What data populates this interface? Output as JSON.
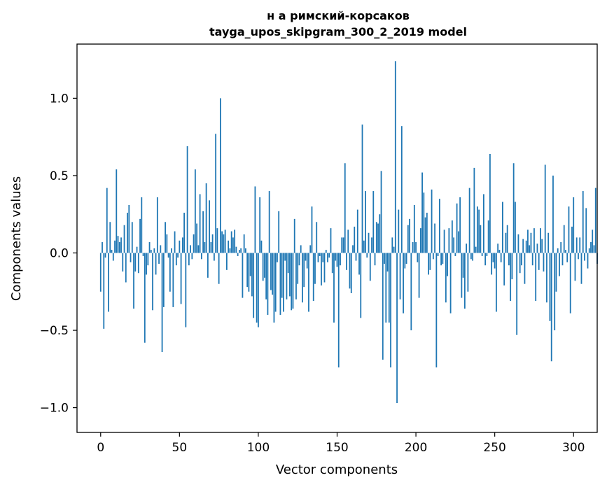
{
  "chart_data": {
    "type": "bar",
    "title_line1": "н а римский-корсаков",
    "title_line2": "tayga_upos_skipgram_300_2_2019 model",
    "xlabel": "Vector components",
    "ylabel": "Components values",
    "xlim": [
      -15,
      315
    ],
    "ylim": [
      -1.16,
      1.35
    ],
    "xticks": [
      0,
      50,
      100,
      150,
      200,
      250,
      300
    ],
    "yticks": [
      -1.0,
      -0.5,
      0.0,
      0.5,
      1.0
    ],
    "ytick_labels": [
      "−1.0",
      "−0.5",
      "0.0",
      "0.5",
      "1.0"
    ],
    "bar_color": "#1f77b4",
    "grid": false,
    "values": [
      -0.25,
      0.07,
      -0.49,
      -0.03,
      0.42,
      -0.38,
      0.2,
      0.02,
      -0.05,
      0.08,
      0.54,
      0.11,
      0.07,
      0.1,
      -0.12,
      0.18,
      -0.19,
      0.26,
      0.31,
      -0.06,
      0.2,
      -0.36,
      -0.12,
      0.04,
      -0.13,
      0.22,
      0.36,
      -0.02,
      -0.58,
      -0.14,
      -0.08,
      0.07,
      0.02,
      -0.37,
      0.03,
      -0.14,
      0.36,
      -0.07,
      0.05,
      -0.64,
      -0.35,
      0.2,
      0.12,
      -0.03,
      -0.25,
      0.03,
      -0.35,
      0.14,
      -0.08,
      -0.03,
      0.08,
      -0.33,
      0.1,
      0.26,
      -0.48,
      0.69,
      -0.08,
      0.05,
      -0.04,
      0.12,
      0.54,
      0.19,
      0.05,
      0.38,
      -0.04,
      0.27,
      0.07,
      0.45,
      -0.16,
      0.34,
      0.07,
      0.12,
      -0.05,
      0.77,
      0.16,
      -0.2,
      1.0,
      0.14,
      0.12,
      0.15,
      -0.11,
      0.08,
      0.03,
      0.14,
      0.1,
      0.15,
      0.04,
      -0.02,
      0.02,
      0.03,
      -0.29,
      0.12,
      0.03,
      -0.22,
      -0.25,
      -0.15,
      -0.28,
      -0.42,
      0.43,
      -0.45,
      -0.48,
      0.36,
      0.08,
      -0.18,
      -0.16,
      -0.3,
      -0.4,
      0.4,
      -0.24,
      -0.27,
      -0.45,
      -0.38,
      -0.06,
      0.27,
      -0.4,
      -0.29,
      -0.38,
      -0.05,
      -0.3,
      -0.13,
      -0.28,
      -0.37,
      -0.36,
      0.22,
      -0.3,
      -0.2,
      -0.08,
      0.05,
      -0.32,
      -0.22,
      -0.05,
      -0.1,
      -0.38,
      0.05,
      0.3,
      -0.31,
      -0.2,
      0.2,
      -0.06,
      -0.02,
      -0.21,
      -0.06,
      -0.19,
      0.02,
      -0.06,
      -0.03,
      0.16,
      -0.13,
      -0.45,
      -0.05,
      -0.09,
      -0.74,
      -0.08,
      0.1,
      0.1,
      0.58,
      -0.11,
      0.15,
      -0.23,
      -0.26,
      0.05,
      0.17,
      -0.05,
      0.28,
      -0.14,
      -0.42,
      0.83,
      0.08,
      0.4,
      -0.03,
      0.13,
      -0.18,
      0.1,
      0.4,
      -0.08,
      0.2,
      0.19,
      0.25,
      0.53,
      -0.69,
      -0.07,
      -0.45,
      -0.12,
      -0.45,
      -0.74,
      0.1,
      0.04,
      1.24,
      -0.97,
      0.28,
      -0.3,
      0.82,
      -0.39,
      -0.1,
      -0.07,
      0.18,
      0.22,
      -0.5,
      0.07,
      0.31,
      0.07,
      -0.06,
      -0.29,
      0.16,
      0.52,
      0.39,
      0.23,
      0.26,
      -0.14,
      -0.11,
      0.41,
      -0.04,
      0.19,
      -0.74,
      -0.02,
      0.35,
      -0.08,
      -0.07,
      0.15,
      -0.32,
      -0.15,
      0.16,
      -0.39,
      0.21,
      0.1,
      -0.02,
      0.32,
      0.14,
      0.36,
      -0.29,
      -0.16,
      -0.36,
      0.06,
      -0.25,
      0.42,
      -0.04,
      -0.05,
      0.55,
      0.04,
      0.3,
      0.28,
      0.18,
      -0.02,
      0.38,
      -0.08,
      -0.02,
      0.21,
      0.64,
      -0.14,
      -0.06,
      -0.1,
      -0.38,
      0.06,
      0.02,
      -0.06,
      0.33,
      -0.21,
      0.13,
      0.18,
      -0.08,
      -0.31,
      -0.17,
      0.58,
      0.33,
      -0.53,
      0.12,
      -0.13,
      -0.08,
      0.09,
      -0.2,
      0.08,
      0.15,
      0.05,
      0.13,
      -0.08,
      0.16,
      -0.31,
      0.06,
      -0.11,
      0.16,
      0.09,
      -0.12,
      0.57,
      -0.32,
      0.13,
      -0.44,
      -0.7,
      0.5,
      -0.5,
      -0.25,
      0.03,
      -0.15,
      0.07,
      -0.08,
      0.18,
      0.02,
      -0.06,
      0.3,
      -0.39,
      0.17,
      0.36,
      -0.18,
      0.1,
      -0.04,
      0.1,
      -0.2,
      0.4,
      -0.05,
      0.29,
      -0.1,
      0.03,
      0.07,
      0.15,
      0.05,
      0.42,
      -0.07
    ]
  }
}
